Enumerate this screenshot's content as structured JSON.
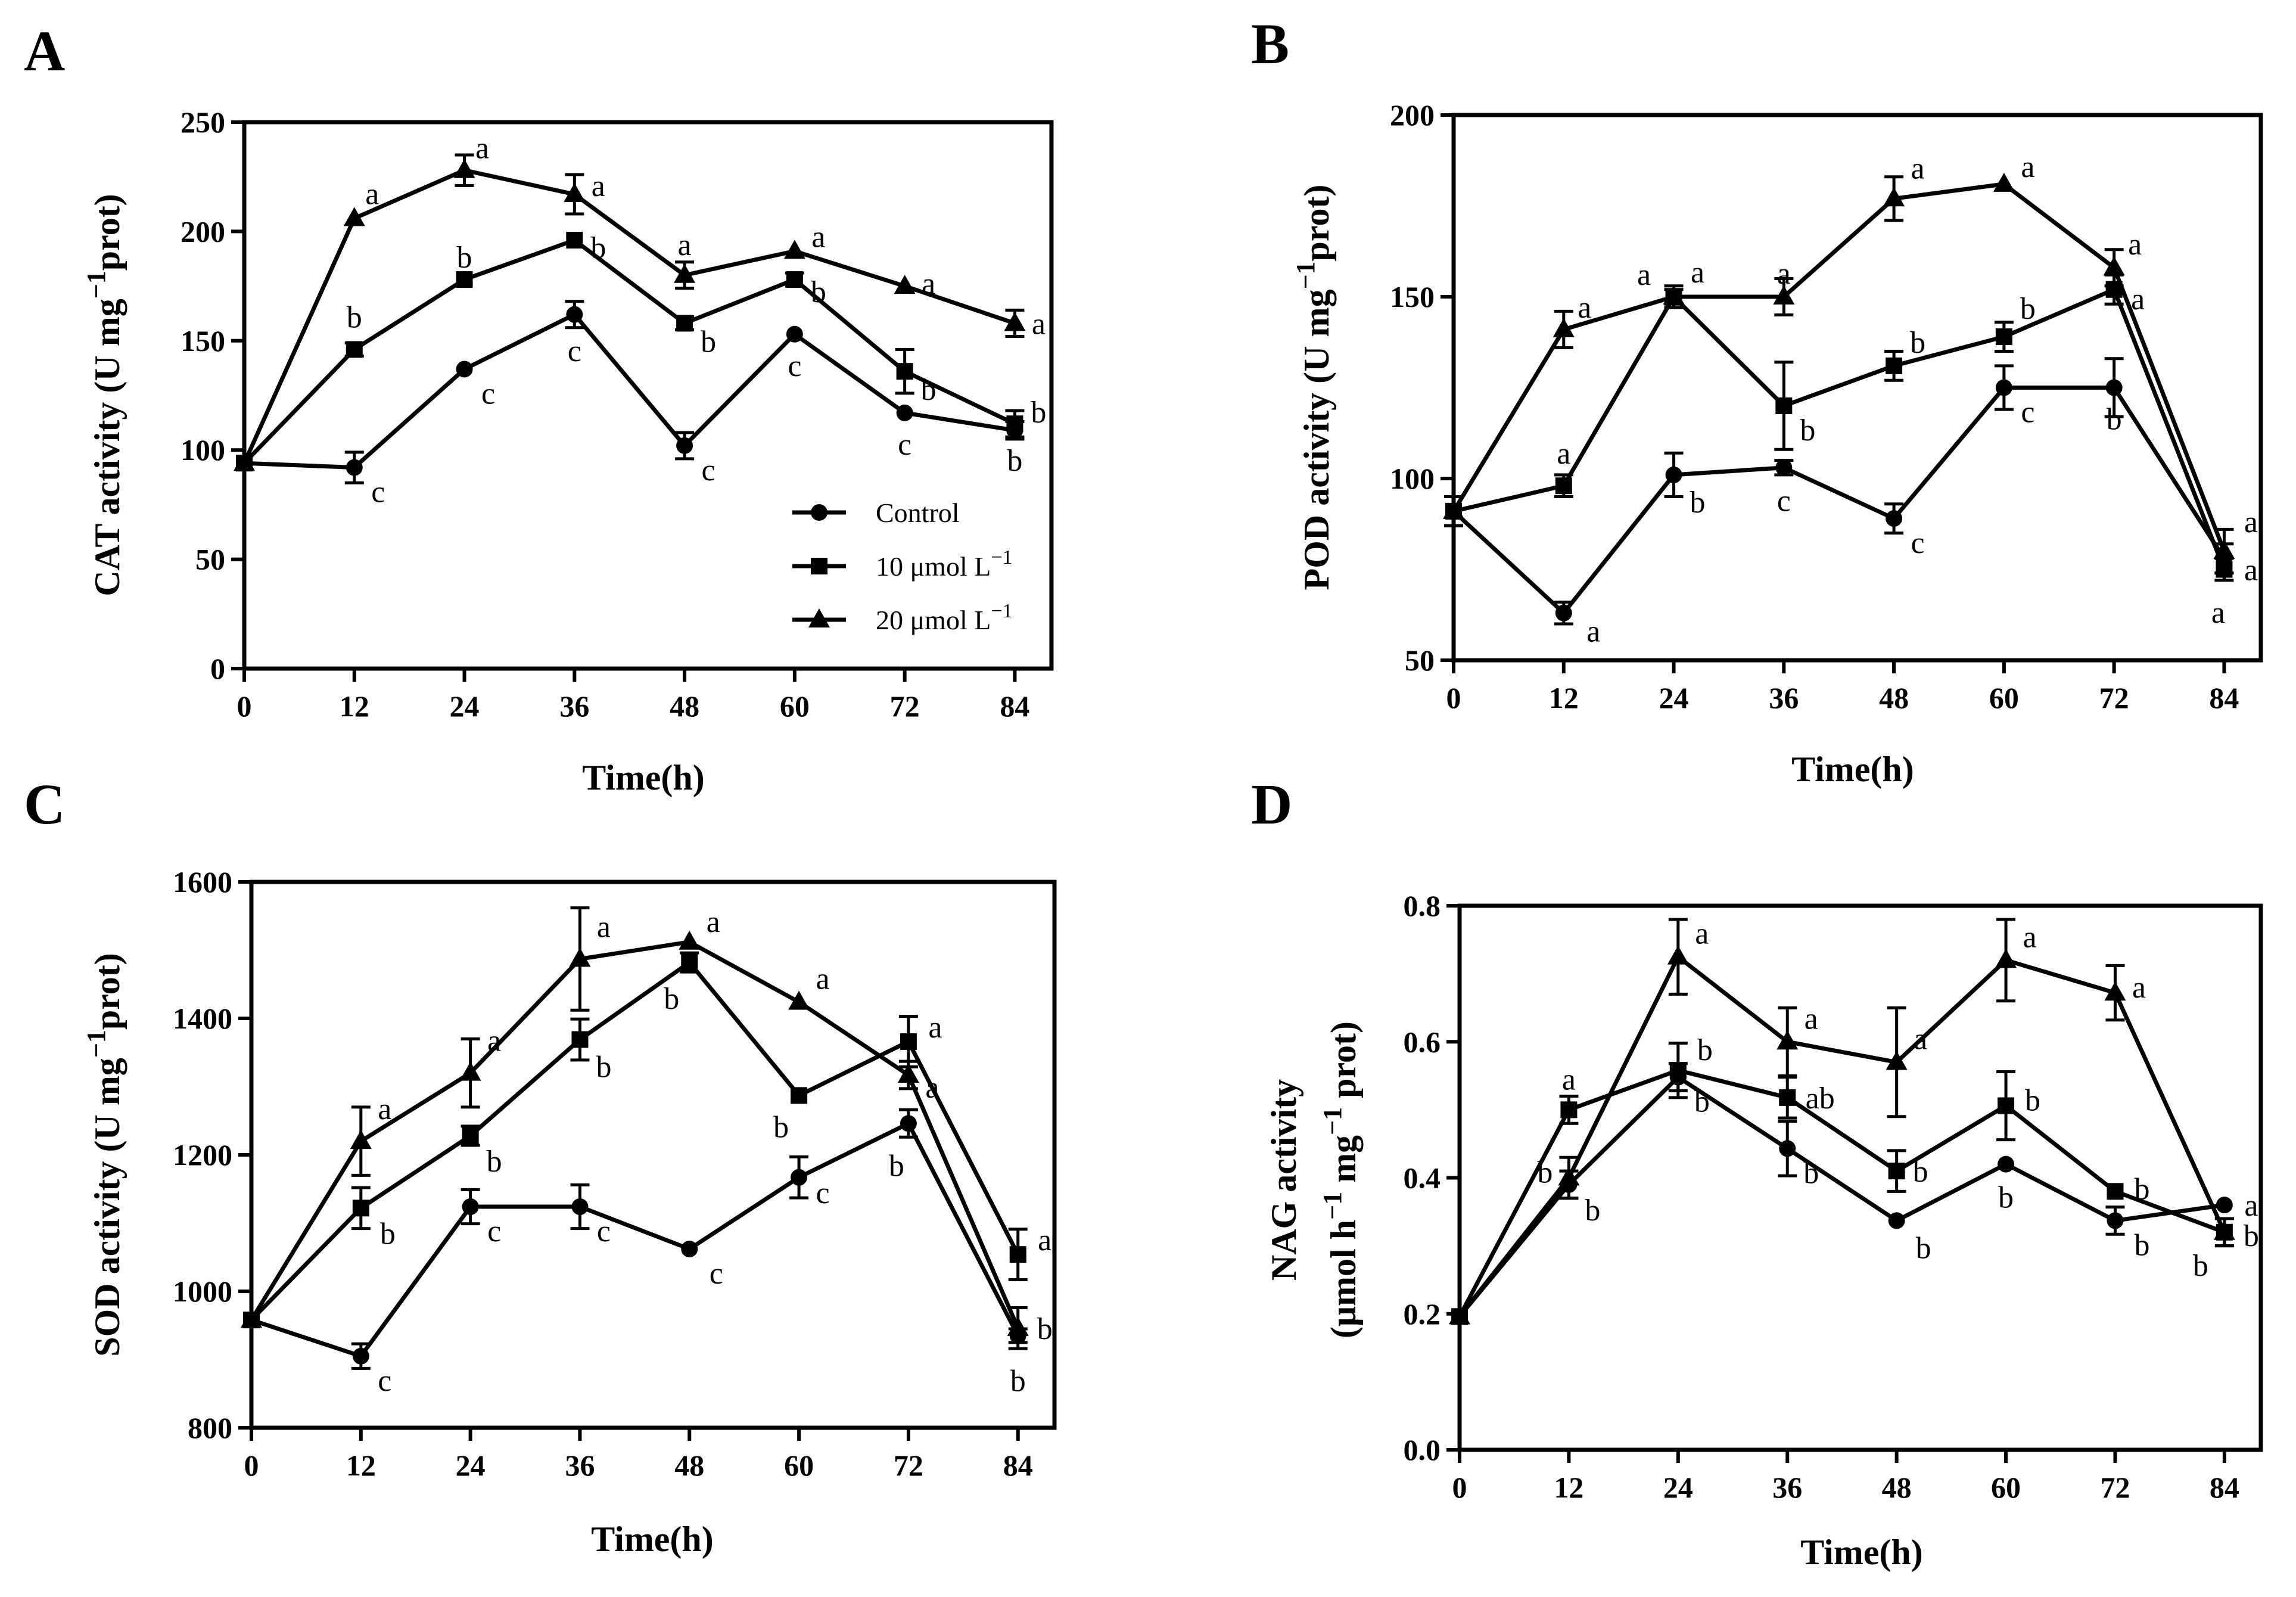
{
  "chart_data": [
    {
      "panel": "A",
      "type": "line",
      "ylabel": "CAT activity (U mg",
      "ylabel_sup": "−1",
      "ylabel_tail": "prot)",
      "xlabel": "Time(h)",
      "x": [
        0,
        12,
        24,
        36,
        48,
        60,
        72,
        84
      ],
      "xlim": [
        0,
        88
      ],
      "ylim": [
        0,
        250
      ],
      "yticks": [
        0,
        50,
        100,
        150,
        200,
        250
      ],
      "yticklabels": [
        "0",
        "50",
        "100",
        "150",
        "200",
        "250"
      ],
      "xticklabels": [
        "0",
        "12",
        "24",
        "36",
        "48",
        "60",
        "72",
        "84"
      ],
      "legend": {
        "placement": "bottom-right",
        "entries": [
          {
            "label": "Control",
            "marker": "circle"
          },
          {
            "label": "10 μmol L",
            "sup": "−1",
            "marker": "square"
          },
          {
            "label": "20 μmol L",
            "sup": "−1",
            "marker": "triangle"
          }
        ]
      },
      "series": [
        {
          "name": "Control",
          "marker": "circle",
          "values": [
            94,
            92,
            137,
            162,
            102,
            153,
            117,
            109
          ],
          "errors": [
            0,
            7,
            0,
            6,
            6,
            0,
            0,
            4
          ],
          "sig": [
            "",
            "c",
            "c",
            "c",
            "c",
            "c",
            "c",
            "b"
          ]
        },
        {
          "name": "10 μmol L−1",
          "marker": "square",
          "values": [
            94,
            146,
            178,
            196,
            158,
            178,
            136,
            112
          ],
          "errors": [
            0,
            3,
            0,
            0,
            3,
            3,
            10,
            6
          ],
          "sig": [
            "",
            "b",
            "b",
            "b",
            "b",
            "b",
            "b",
            "b"
          ]
        },
        {
          "name": "20 μmol L−1",
          "marker": "triangle",
          "values": [
            94,
            206,
            228,
            217,
            180,
            191,
            175,
            158
          ],
          "errors": [
            0,
            0,
            7,
            9,
            6,
            0,
            0,
            6
          ],
          "sig": [
            "",
            "a",
            "a",
            "a",
            "a",
            "a",
            "a",
            "a"
          ]
        }
      ]
    },
    {
      "panel": "B",
      "type": "line",
      "ylabel": "POD activity (U mg",
      "ylabel_sup": "−1",
      "ylabel_tail": "prot)",
      "xlabel": "Time(h)",
      "x": [
        0,
        12,
        24,
        36,
        48,
        60,
        72,
        84
      ],
      "xlim": [
        0,
        88
      ],
      "ylim": [
        50,
        200
      ],
      "yticks": [
        50,
        100,
        150,
        200
      ],
      "yticklabels": [
        "50",
        "100",
        "150",
        "200"
      ],
      "xticklabels": [
        "0",
        "12",
        "24",
        "36",
        "48",
        "60",
        "72",
        "84"
      ],
      "series": [
        {
          "name": "Control",
          "marker": "circle",
          "values": [
            91,
            63,
            101,
            103,
            89,
            125,
            125,
            78
          ],
          "errors": [
            4,
            3,
            6,
            2,
            4,
            6,
            8,
            4
          ],
          "sig": [
            "",
            "a",
            "b",
            "c",
            "c",
            "c",
            "b",
            "a"
          ]
        },
        {
          "name": "10 μmol L−1",
          "marker": "square",
          "values": [
            91,
            98,
            150,
            120,
            131,
            139,
            152,
            75
          ],
          "errors": [
            4,
            3,
            3,
            12,
            4,
            4,
            4,
            3
          ],
          "sig": [
            "",
            "a",
            "a",
            "b",
            "b",
            "b",
            "a",
            "a"
          ]
        },
        {
          "name": "20 μmol L−1",
          "marker": "triangle",
          "values": [
            91,
            141,
            150,
            150,
            177,
            181,
            158,
            80
          ],
          "errors": [
            4,
            5,
            2,
            5,
            6,
            0,
            5,
            6
          ],
          "sig": [
            "",
            "a",
            "a",
            "a",
            "a",
            "a",
            "a",
            "a"
          ]
        }
      ]
    },
    {
      "panel": "C",
      "type": "line",
      "ylabel": "SOD activity (U mg",
      "ylabel_sup": "−1",
      "ylabel_tail": "prot)",
      "xlabel": "Time(h)",
      "x": [
        0,
        12,
        24,
        36,
        48,
        60,
        72,
        84
      ],
      "xlim": [
        0,
        88
      ],
      "ylim": [
        800,
        1600
      ],
      "yticks": [
        800,
        1000,
        1200,
        1400,
        1600
      ],
      "yticklabels": [
        "800",
        "1000",
        "1200",
        "1400",
        "1600"
      ],
      "xticklabels": [
        "0",
        "12",
        "24",
        "36",
        "48",
        "60",
        "72",
        "84"
      ],
      "series": [
        {
          "name": "Control",
          "marker": "circle",
          "values": [
            958,
            905,
            1124,
            1124,
            1062,
            1167,
            1246,
            935
          ],
          "errors": [
            0,
            18,
            25,
            32,
            0,
            30,
            20,
            10
          ],
          "sig": [
            "",
            "c",
            "c",
            "c",
            "c",
            "c",
            "b",
            "b"
          ]
        },
        {
          "name": "10 μmol L−1",
          "marker": "square",
          "values": [
            958,
            1122,
            1228,
            1369,
            1482,
            1287,
            1366,
            1054
          ],
          "errors": [
            0,
            30,
            14,
            30,
            14,
            0,
            37,
            37
          ],
          "sig": [
            "",
            "b",
            "b",
            "b",
            "b",
            "b",
            "a",
            "a"
          ]
        },
        {
          "name": "20 μmol L−1",
          "marker": "triangle",
          "values": [
            958,
            1220,
            1320,
            1487,
            1512,
            1424,
            1317,
            946
          ],
          "errors": [
            0,
            50,
            50,
            75,
            0,
            0,
            20,
            30
          ],
          "sig": [
            "",
            "a",
            "a",
            "a",
            "a",
            "a",
            "a",
            "b"
          ]
        }
      ]
    },
    {
      "panel": "D",
      "type": "line",
      "ylabel": "NAG activity",
      "ylabel2": "(μmol h",
      "ylabel2_sup1": "−1",
      "ylabel2_mid": " mg",
      "ylabel2_sup2": "−1",
      "ylabel2_tail": " prot)",
      "xlabel": "Time(h)",
      "x": [
        0,
        12,
        24,
        36,
        48,
        60,
        72,
        84
      ],
      "xlim": [
        0,
        88
      ],
      "ylim": [
        0,
        0.8
      ],
      "yticks": [
        0,
        0.2,
        0.4,
        0.6,
        0.8
      ],
      "yticklabels": [
        "0.0",
        "0.2",
        "0.4",
        "0.6",
        "0.8"
      ],
      "xticklabels": [
        "0",
        "12",
        "24",
        "36",
        "48",
        "60",
        "72",
        "84"
      ],
      "series": [
        {
          "name": "Control",
          "marker": "circle",
          "values": [
            0.196,
            0.39,
            0.548,
            0.443,
            0.337,
            0.42,
            0.337,
            0.36
          ],
          "errors": [
            0,
            0.02,
            0.02,
            0.04,
            0,
            0,
            0.02,
            0
          ],
          "sig": [
            "",
            "b",
            "b",
            "b",
            "b",
            "b",
            "b",
            "a"
          ]
        },
        {
          "name": "10 μmol L−1",
          "marker": "square",
          "values": [
            0.196,
            0.5,
            0.558,
            0.518,
            0.41,
            0.506,
            0.38,
            0.32
          ],
          "errors": [
            0,
            0.02,
            0.04,
            0.03,
            0.03,
            0.05,
            0,
            0.02
          ],
          "sig": [
            "",
            "a",
            "b",
            "ab",
            "b",
            "b",
            "b",
            "b"
          ]
        },
        {
          "name": "20 μmol L−1",
          "marker": "triangle",
          "values": [
            0.196,
            0.4,
            0.725,
            0.6,
            0.57,
            0.72,
            0.672,
            0.32
          ],
          "errors": [
            0,
            0.03,
            0.055,
            0.05,
            0.08,
            0.06,
            0.04,
            0.02
          ],
          "sig": [
            "",
            "b",
            "a",
            "a",
            "a",
            "a",
            "a",
            "b"
          ]
        }
      ]
    }
  ]
}
